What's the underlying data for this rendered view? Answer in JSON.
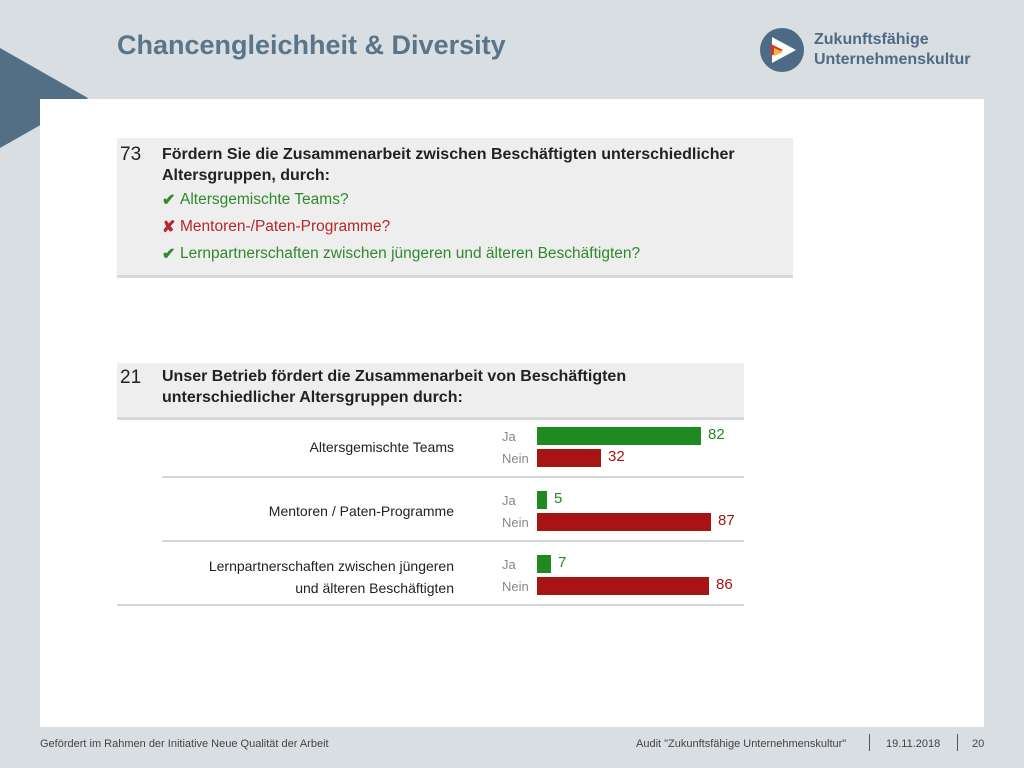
{
  "slide": {
    "title": "Chancengleichheit & Diversity",
    "logo_line1": "Zukunftsfähige",
    "logo_line2": "Unternehmenskultur"
  },
  "question73": {
    "number": "73",
    "text": "Fördern Sie die Zusammenarbeit zwischen Beschäftigten unterschiedlicher Altersgruppen, durch:",
    "items": [
      {
        "mark": "✔",
        "label": "Altersgemischte Teams?",
        "status": "yes"
      },
      {
        "mark": "✘",
        "label": "Mentoren-/Paten-Programme?",
        "status": "no"
      },
      {
        "mark": "✔",
        "label": "Lernpartnerschaften zwischen jüngeren und älteren Beschäftigten?",
        "status": "yes"
      }
    ]
  },
  "question21": {
    "number": "21",
    "text": "Unser Betrieb fördert die Zusammenarbeit von Beschäftigten unterschiedlicher Altersgruppen durch:"
  },
  "chart_data": {
    "type": "bar",
    "orientation": "horizontal",
    "categories": [
      "Altersgemischte Teams",
      "Mentoren / Paten-Programme",
      "Lernpartnerschaften zwischen jüngeren und älteren Beschäftigten"
    ],
    "category_lines": [
      [
        "Altersgemischte Teams"
      ],
      [
        "Mentoren / Paten-Programme"
      ],
      [
        "Lernpartnerschaften zwischen jüngeren",
        "und älteren Beschäftigten"
      ]
    ],
    "series": [
      {
        "name": "Ja",
        "color": "#1f8a1f",
        "values": [
          82,
          5,
          7
        ]
      },
      {
        "name": "Nein",
        "color": "#a81414",
        "values": [
          32,
          87,
          86
        ]
      }
    ],
    "xlim": [
      0,
      100
    ],
    "data_labels": true
  },
  "footer": {
    "left": "Gefördert im Rahmen der Initiative Neue Qualität der Arbeit",
    "audit": "Audit \"Zukunftsfähige Unternehmenskultur\"",
    "date": "19.11.2018",
    "page": "20"
  }
}
